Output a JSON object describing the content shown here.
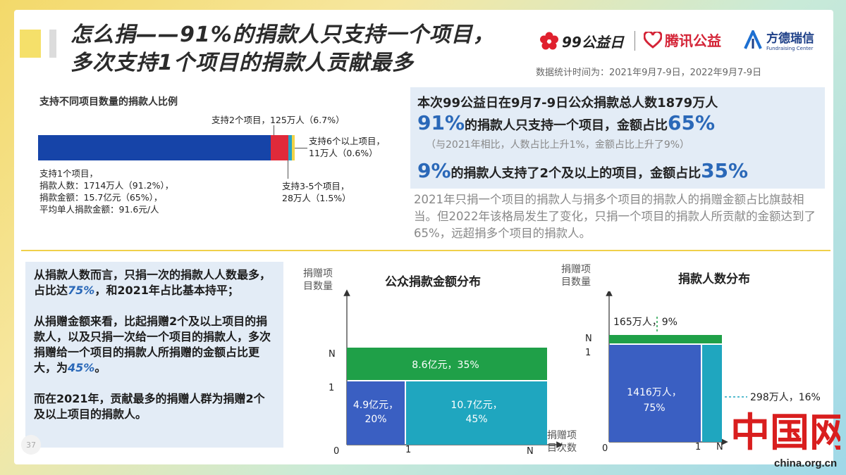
{
  "header": {
    "title_line1": "怎么捐——91%的捐款人只支持一个项目，",
    "title_line2": "多次支持1个项目的捐款人贡献最多",
    "logo_99": "99公益日",
    "logo_tencent": "腾讯公益",
    "logo_fd_cn": "方德瑞信",
    "logo_fd_en": "Fundraising Center",
    "stat_date": "数据统计时间为：2021年9月7-9日，2022年9月7-9日"
  },
  "left_top": {
    "title": "支持不同项目数量的捐款人比例",
    "anno_1": "支持1个项目，\n捐款人数：1714万人（91.2%），\n捐款金额：15.7亿元（65%），\n平均单人捐款金额：91.6元/人",
    "anno_2": "支持2个项目，125万人（6.7%）",
    "anno_6": "支持6个以上项目，\n11万人（0.6%）",
    "anno_35": "支持3-5个项目，\n28万人（1.5%）"
  },
  "info": {
    "l1": "本次99公益日在9月7-9日公众捐款总人数1879万人",
    "l2_big": "91%",
    "l2_mid": "的捐款人只支持一个项目，金额占比",
    "l2_big2": "65%",
    "l3": "（与2021年相比，人数占比上升1%，金额占比上升了9%）",
    "l4_big": "9%",
    "l4_mid": "的捐款人支持了2个及以上的项目，金额占比",
    "l4_big2": "35%",
    "para": "2021年只捐一个项目的捐款人与捐多个项目的捐款人的捐赠金额占比旗鼓相当。但2022年该格局发生了变化，只捐一个项目的捐款人所贡献的金额达到了65%，远超捐多个项目的捐款人。"
  },
  "left_box": {
    "p1a": "从捐款人数而言，只捐一次的捐款人人数最多，占比达",
    "p1em": "75%",
    "p1b": "，和2021年占比基本持平；",
    "p2a": "从捐赠金额来看，比起捐赠2个及以上项目的捐款人，以及只捐一次给一个项目的捐款人，多次捐赠给一个项目的捐款人所捐赠的金额占比更大，为",
    "p2em": "45%",
    "p2b": "。",
    "p3": "而在2021年，贡献最多的捐赠人群为捐赠2个及以上项目的捐款人。",
    "page": "37"
  },
  "chart_mid": {
    "title": "公众捐款金额分布",
    "ylabel_1": "捐赠项",
    "ylabel_2": "目数量",
    "xlabel_1": "捐赠项",
    "xlabel_2": "目次数",
    "tick_N_y": "N",
    "tick_1_y": "1",
    "tick_0": "0",
    "tick_1_x": "1",
    "tick_N_x": "N",
    "label_top": "8.6亿元，35%",
    "label_bl_1": "4.9亿元，",
    "label_bl_2": "20%",
    "label_br_1": "10.7亿元，",
    "label_br_2": "45%"
  },
  "chart_right": {
    "title": "捐款人数分布",
    "ylabel_1": "捐赠项",
    "ylabel_2": "目数量",
    "tick_N_y": "N",
    "tick_1_y": "1",
    "tick_0": "0",
    "tick_1_x": "1",
    "tick_N_x": "N",
    "label_top": "165万人，9%",
    "label_bl_1": "1416万人，",
    "label_bl_2": "75%",
    "label_br": "298万人，16%"
  },
  "watermark": {
    "site": "china.org.cn",
    "cn": "中国网"
  },
  "chart_data": [
    {
      "type": "bar",
      "title": "支持不同项目数量的捐款人比例",
      "categories": [
        "支持1个项目",
        "支持2个项目",
        "支持3-5个项目",
        "支持6个以上项目"
      ],
      "values": [
        91.2,
        6.7,
        1.5,
        0.6
      ],
      "colors": [
        "#1644a8",
        "#e02a3a",
        "#26a2c7",
        "#f2d347"
      ]
    },
    {
      "type": "heatmap",
      "title": "公众捐款金额分布",
      "cells": [
        {
          "label": "8.6亿元，35%",
          "value": 35,
          "color": "#1fa048"
        },
        {
          "label": "4.9亿元，20%",
          "value": 20,
          "color": "#3a5fc2"
        },
        {
          "label": "10.7亿元，45%",
          "value": 45,
          "color": "#1fa6bf"
        }
      ]
    },
    {
      "type": "heatmap",
      "title": "捐款人数分布",
      "cells": [
        {
          "label": "165万人，9%",
          "value": 9,
          "color": "#1fa048"
        },
        {
          "label": "1416万人，75%",
          "value": 75,
          "color": "#3a5fc2"
        },
        {
          "label": "298万人，16%",
          "value": 16,
          "color": "#1fa6bf"
        }
      ]
    }
  ]
}
